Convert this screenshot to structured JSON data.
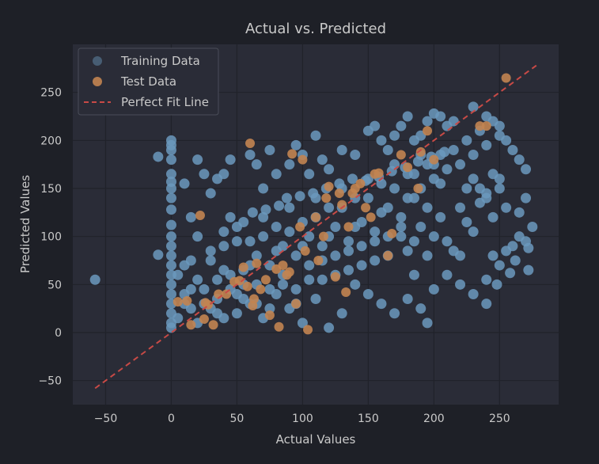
{
  "chart_data": {
    "type": "scatter",
    "title": "Actual vs. Predicted",
    "xlabel": "Actual Values",
    "ylabel": "Predicted Values",
    "xlim": [
      -75,
      295
    ],
    "ylim": [
      -75,
      300
    ],
    "xticks": [
      -50,
      0,
      50,
      100,
      150,
      200,
      250
    ],
    "yticks": [
      -50,
      0,
      50,
      100,
      150,
      200,
      250
    ],
    "grid": true,
    "legend_position": "top-left",
    "colors": {
      "figure_bg": "#1e2027",
      "axes_bg": "#2a2c37",
      "grid": "#20222a",
      "text": "#c9c9c9",
      "training": "#6b99bd",
      "test": "#c28451",
      "fit_line": "#c84a46"
    },
    "series": [
      {
        "name": "Training Data",
        "color": "#6b99bd",
        "points": [
          [
            -58,
            55
          ],
          [
            -10,
            81
          ],
          [
            -10,
            183
          ],
          [
            0,
            200
          ],
          [
            0,
            195
          ],
          [
            0,
            190
          ],
          [
            0,
            180
          ],
          [
            0,
            165
          ],
          [
            0,
            157
          ],
          [
            0,
            150
          ],
          [
            0,
            140
          ],
          [
            0,
            128
          ],
          [
            0,
            112
          ],
          [
            0,
            100
          ],
          [
            0,
            90
          ],
          [
            0,
            80
          ],
          [
            0,
            70
          ],
          [
            0,
            60
          ],
          [
            0,
            50
          ],
          [
            0,
            40
          ],
          [
            0,
            30
          ],
          [
            0,
            20
          ],
          [
            0,
            10
          ],
          [
            0,
            5
          ],
          [
            5,
            60
          ],
          [
            10,
            40
          ],
          [
            15,
            75
          ],
          [
            20,
            55
          ],
          [
            25,
            30
          ],
          [
            30,
            85
          ],
          [
            35,
            20
          ],
          [
            40,
            65
          ],
          [
            45,
            45
          ],
          [
            50,
            95
          ],
          [
            55,
            35
          ],
          [
            60,
            70
          ],
          [
            65,
            50
          ],
          [
            70,
            100
          ],
          [
            75,
            25
          ],
          [
            80,
            85
          ],
          [
            85,
            60
          ],
          [
            90,
            105
          ],
          [
            95,
            45
          ],
          [
            100,
            90
          ],
          [
            105,
            70
          ],
          [
            110,
            120
          ],
          [
            115,
            55
          ],
          [
            120,
            100
          ],
          [
            125,
            80
          ],
          [
            130,
            130
          ],
          [
            135,
            65
          ],
          [
            140,
            110
          ],
          [
            145,
            90
          ],
          [
            150,
            140
          ],
          [
            155,
            75
          ],
          [
            160,
            125
          ],
          [
            165,
            100
          ],
          [
            170,
            150
          ],
          [
            175,
            110
          ],
          [
            180,
            140
          ],
          [
            185,
            165
          ],
          [
            190,
            150
          ],
          [
            195,
            175
          ],
          [
            200,
            160
          ],
          [
            205,
            185
          ],
          [
            210,
            170
          ],
          [
            215,
            190
          ],
          [
            220,
            175
          ],
          [
            225,
            200
          ],
          [
            230,
            185
          ],
          [
            235,
            210
          ],
          [
            240,
            195
          ],
          [
            245,
            220
          ],
          [
            250,
            205
          ],
          [
            20,
            180
          ],
          [
            30,
            145
          ],
          [
            40,
            165
          ],
          [
            45,
            180
          ],
          [
            25,
            165
          ],
          [
            10,
            155
          ],
          [
            15,
            120
          ],
          [
            35,
            160
          ],
          [
            60,
            185
          ],
          [
            70,
            150
          ],
          [
            65,
            175
          ],
          [
            75,
            190
          ],
          [
            80,
            165
          ],
          [
            90,
            175
          ],
          [
            95,
            195
          ],
          [
            100,
            185
          ],
          [
            105,
            165
          ],
          [
            110,
            205
          ],
          [
            115,
            180
          ],
          [
            120,
            170
          ],
          [
            130,
            190
          ],
          [
            140,
            185
          ],
          [
            150,
            210
          ],
          [
            155,
            215
          ],
          [
            160,
            200
          ],
          [
            165,
            190
          ],
          [
            170,
            205
          ],
          [
            175,
            215
          ],
          [
            180,
            225
          ],
          [
            185,
            200
          ],
          [
            190,
            205
          ],
          [
            195,
            220
          ],
          [
            200,
            228
          ],
          [
            205,
            225
          ],
          [
            210,
            215
          ],
          [
            215,
            220
          ],
          [
            230,
            235
          ],
          [
            240,
            225
          ],
          [
            250,
            215
          ],
          [
            255,
            200
          ],
          [
            260,
            190
          ],
          [
            265,
            180
          ],
          [
            270,
            170
          ],
          [
            40,
            105
          ],
          [
            45,
            120
          ],
          [
            55,
            115
          ],
          [
            62,
            125
          ],
          [
            72,
            128
          ],
          [
            82,
            132
          ],
          [
            88,
            140
          ],
          [
            98,
            142
          ],
          [
            108,
            145
          ],
          [
            118,
            150
          ],
          [
            128,
            155
          ],
          [
            138,
            160
          ],
          [
            148,
            158
          ],
          [
            158,
            162
          ],
          [
            168,
            168
          ],
          [
            178,
            172
          ],
          [
            188,
            178
          ],
          [
            198,
            183
          ],
          [
            208,
            188
          ],
          [
            50,
            20
          ],
          [
            60,
            30
          ],
          [
            70,
            15
          ],
          [
            80,
            40
          ],
          [
            90,
            25
          ],
          [
            100,
            10
          ],
          [
            110,
            35
          ],
          [
            120,
            5
          ],
          [
            130,
            20
          ],
          [
            140,
            50
          ],
          [
            150,
            40
          ],
          [
            160,
            30
          ],
          [
            170,
            20
          ],
          [
            180,
            35
          ],
          [
            185,
            60
          ],
          [
            190,
            25
          ],
          [
            195,
            10
          ],
          [
            200,
            45
          ],
          [
            210,
            60
          ],
          [
            220,
            50
          ],
          [
            230,
            40
          ],
          [
            240,
            55
          ],
          [
            250,
            70
          ],
          [
            255,
            85
          ],
          [
            260,
            90
          ],
          [
            265,
            100
          ],
          [
            270,
            95
          ],
          [
            275,
            110
          ],
          [
            272,
            88
          ],
          [
            262,
            75
          ],
          [
            258,
            62
          ],
          [
            248,
            50
          ],
          [
            245,
            80
          ],
          [
            240,
            30
          ],
          [
            175,
            100
          ],
          [
            180,
            85
          ],
          [
            185,
            95
          ],
          [
            190,
            110
          ],
          [
            195,
            80
          ],
          [
            200,
            100
          ],
          [
            205,
            120
          ],
          [
            210,
            95
          ],
          [
            215,
            85
          ],
          [
            220,
            80
          ],
          [
            225,
            115
          ],
          [
            230,
            105
          ],
          [
            235,
            135
          ],
          [
            240,
            140
          ],
          [
            245,
            120
          ],
          [
            250,
            150
          ],
          [
            255,
            130
          ],
          [
            265,
            125
          ],
          [
            270,
            140
          ],
          [
            272,
            65
          ],
          [
            220,
            130
          ],
          [
            225,
            150
          ],
          [
            230,
            160
          ],
          [
            235,
            150
          ],
          [
            240,
            145
          ],
          [
            245,
            165
          ],
          [
            250,
            160
          ],
          [
            10,
            70
          ],
          [
            20,
            100
          ],
          [
            30,
            75
          ],
          [
            40,
            90
          ],
          [
            50,
            110
          ],
          [
            60,
            95
          ],
          [
            70,
            120
          ],
          [
            80,
            110
          ],
          [
            90,
            130
          ],
          [
            100,
            115
          ],
          [
            110,
            140
          ],
          [
            120,
            130
          ],
          [
            130,
            150
          ],
          [
            140,
            140
          ],
          [
            150,
            160
          ],
          [
            160,
            155
          ],
          [
            170,
            175
          ],
          [
            180,
            165
          ],
          [
            190,
            185
          ],
          [
            200,
            175
          ],
          [
            15,
            25
          ],
          [
            25,
            45
          ],
          [
            35,
            35
          ],
          [
            45,
            60
          ],
          [
            55,
            50
          ],
          [
            65,
            80
          ],
          [
            75,
            70
          ],
          [
            85,
            90
          ],
          [
            95,
            80
          ],
          [
            105,
            100
          ],
          [
            115,
            90
          ],
          [
            125,
            110
          ],
          [
            135,
            95
          ],
          [
            145,
            115
          ],
          [
            155,
            105
          ],
          [
            165,
            130
          ],
          [
            175,
            120
          ],
          [
            185,
            140
          ],
          [
            195,
            130
          ],
          [
            205,
            155
          ],
          [
            5,
            15
          ],
          [
            10,
            30
          ],
          [
            15,
            45
          ],
          [
            20,
            10
          ],
          [
            30,
            25
          ],
          [
            35,
            55
          ],
          [
            40,
            15
          ],
          [
            50,
            40
          ],
          [
            55,
            65
          ],
          [
            65,
            30
          ],
          [
            75,
            45
          ],
          [
            85,
            50
          ],
          [
            95,
            30
          ],
          [
            105,
            55
          ],
          [
            115,
            75
          ],
          [
            125,
            60
          ],
          [
            135,
            85
          ],
          [
            145,
            70
          ],
          [
            155,
            95
          ],
          [
            165,
            80
          ]
        ]
      },
      {
        "name": "Test Data",
        "color": "#c28451",
        "points": [
          [
            5,
            32
          ],
          [
            12,
            33
          ],
          [
            15,
            8
          ],
          [
            22,
            122
          ],
          [
            25,
            14
          ],
          [
            26,
            31
          ],
          [
            28,
            29
          ],
          [
            32,
            8
          ],
          [
            36,
            40
          ],
          [
            42,
            40
          ],
          [
            48,
            53
          ],
          [
            52,
            54
          ],
          [
            55,
            68
          ],
          [
            58,
            48
          ],
          [
            60,
            197
          ],
          [
            62,
            28
          ],
          [
            63,
            35
          ],
          [
            65,
            72
          ],
          [
            68,
            45
          ],
          [
            72,
            55
          ],
          [
            75,
            18
          ],
          [
            80,
            66
          ],
          [
            82,
            6
          ],
          [
            85,
            70
          ],
          [
            88,
            60
          ],
          [
            90,
            63
          ],
          [
            92,
            186
          ],
          [
            95,
            30
          ],
          [
            98,
            110
          ],
          [
            100,
            180
          ],
          [
            102,
            85
          ],
          [
            104,
            3
          ],
          [
            110,
            120
          ],
          [
            112,
            75
          ],
          [
            116,
            100
          ],
          [
            118,
            140
          ],
          [
            120,
            152
          ],
          [
            125,
            58
          ],
          [
            128,
            145
          ],
          [
            130,
            133
          ],
          [
            133,
            42
          ],
          [
            135,
            110
          ],
          [
            138,
            145
          ],
          [
            140,
            150
          ],
          [
            144,
            155
          ],
          [
            148,
            130
          ],
          [
            152,
            120
          ],
          [
            155,
            165
          ],
          [
            158,
            166
          ],
          [
            165,
            80
          ],
          [
            168,
            103
          ],
          [
            175,
            185
          ],
          [
            180,
            172
          ],
          [
            188,
            150
          ],
          [
            190,
            188
          ],
          [
            195,
            210
          ],
          [
            200,
            180
          ],
          [
            235,
            215
          ],
          [
            240,
            215
          ],
          [
            255,
            265
          ]
        ]
      },
      {
        "name": "Perfect Fit Line",
        "color": "#c84a46",
        "points": [
          [
            -58,
            -58
          ],
          [
            278,
            278
          ]
        ]
      }
    ]
  }
}
